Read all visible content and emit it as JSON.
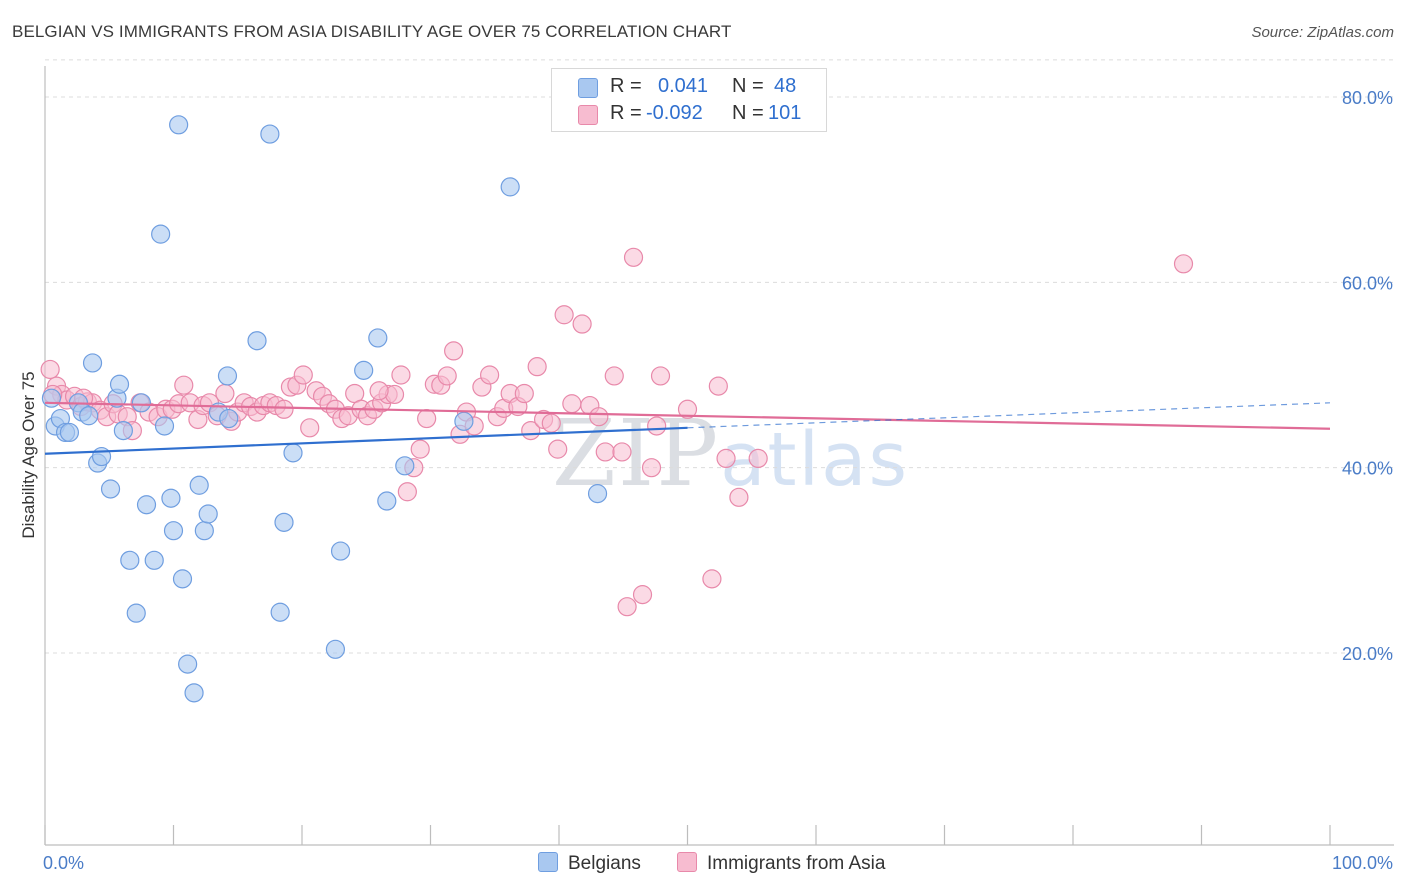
{
  "title": "BELGIAN VS IMMIGRANTS FROM ASIA DISABILITY AGE OVER 75 CORRELATION CHART",
  "source": "Source: ZipAtlas.com",
  "watermark": {
    "zip": "ZIP",
    "atlas": "atlas"
  },
  "legend": {
    "rows": [
      {
        "r_label": "R =",
        "r_value": "0.041",
        "n_label": "N =",
        "n_value": "48",
        "color": "#a9c8f0",
        "border": "#6f9ee0"
      },
      {
        "r_label": "R =",
        "r_value": "-0.092",
        "n_label": "N =",
        "n_value": "101",
        "color": "#f7bcd0",
        "border": "#e889aa"
      }
    ]
  },
  "bottom_legend": [
    "Belgians",
    "Immigrants from Asia"
  ],
  "colors": {
    "belgians_fill": "#a9c8f0",
    "belgians_stroke": "#6f9ee0",
    "belgians_line": "#2f6fcf",
    "asia_fill": "#f7bcd0",
    "asia_stroke": "#e889aa",
    "asia_line": "#e06c97",
    "grid": "#dcdcdc",
    "tick_text": "#4a7cc7"
  },
  "chart_data": {
    "type": "scatter",
    "title": "BELGIAN VS IMMIGRANTS FROM ASIA DISABILITY AGE OVER 75 CORRELATION CHART",
    "xlabel": "",
    "ylabel": "Disability Age Over 75",
    "xlim": [
      0,
      100
    ],
    "ylim": [
      0,
      85
    ],
    "x_tick_labels": [
      {
        "x": 0,
        "label": "0.0%"
      },
      {
        "x": 100,
        "label": "100.0%"
      }
    ],
    "y_tick_labels": [
      {
        "y": 20,
        "label": "20.0%"
      },
      {
        "y": 40,
        "label": "40.0%"
      },
      {
        "y": 60,
        "label": "60.0%"
      },
      {
        "y": 80,
        "label": "80.0%"
      }
    ],
    "series": [
      {
        "name": "Belgians",
        "R": 0.041,
        "N": 48,
        "trend": {
          "x0": 0,
          "y0": 41.5,
          "x1": 50,
          "y1": 44.3,
          "dashed_to_x": 100,
          "dashed_to_y": 47.0
        },
        "points": [
          [
            0.5,
            47.5
          ],
          [
            0.8,
            44.5
          ],
          [
            1.2,
            45.3
          ],
          [
            1.6,
            43.8
          ],
          [
            1.9,
            43.8
          ],
          [
            2.6,
            47.0
          ],
          [
            2.9,
            46.0
          ],
          [
            3.4,
            45.6
          ],
          [
            3.7,
            51.3
          ],
          [
            4.1,
            40.5
          ],
          [
            4.4,
            41.2
          ],
          [
            5.1,
            37.7
          ],
          [
            5.6,
            47.5
          ],
          [
            5.8,
            49.0
          ],
          [
            6.1,
            44.0
          ],
          [
            6.6,
            30.0
          ],
          [
            7.1,
            24.3
          ],
          [
            7.5,
            47.0
          ],
          [
            7.9,
            36.0
          ],
          [
            8.5,
            30.0
          ],
          [
            9.0,
            65.2
          ],
          [
            9.3,
            44.5
          ],
          [
            9.8,
            36.7
          ],
          [
            10.0,
            33.2
          ],
          [
            10.4,
            77.0
          ],
          [
            10.7,
            28.0
          ],
          [
            11.1,
            18.8
          ],
          [
            11.6,
            15.7
          ],
          [
            12.0,
            38.1
          ],
          [
            12.4,
            33.2
          ],
          [
            12.7,
            35.0
          ],
          [
            13.5,
            46.0
          ],
          [
            14.2,
            49.9
          ],
          [
            14.3,
            45.3
          ],
          [
            16.5,
            53.7
          ],
          [
            17.5,
            76.0
          ],
          [
            18.3,
            24.4
          ],
          [
            18.6,
            34.1
          ],
          [
            19.3,
            41.6
          ],
          [
            22.6,
            20.4
          ],
          [
            23.0,
            31.0
          ],
          [
            24.8,
            50.5
          ],
          [
            25.9,
            54.0
          ],
          [
            26.6,
            36.4
          ],
          [
            28.0,
            40.2
          ],
          [
            32.6,
            45.0
          ],
          [
            36.2,
            70.3
          ],
          [
            43.0,
            37.2
          ]
        ]
      },
      {
        "name": "Immigrants from Asia",
        "R": -0.092,
        "N": 101,
        "trend": {
          "x0": 0,
          "y0": 47.0,
          "x1": 100,
          "y1": 44.2
        },
        "points": [
          [
            0.4,
            50.6
          ],
          [
            0.9,
            48.8
          ],
          [
            1.3,
            47.9
          ],
          [
            1.7,
            47.3
          ],
          [
            2.3,
            47.7
          ],
          [
            2.8,
            46.6
          ],
          [
            3.3,
            47.1
          ],
          [
            3.7,
            47.0
          ],
          [
            4.3,
            46.2
          ],
          [
            4.8,
            45.5
          ],
          [
            5.3,
            46.9
          ],
          [
            5.7,
            45.8
          ],
          [
            6.4,
            45.5
          ],
          [
            6.8,
            44.0
          ],
          [
            7.4,
            47.0
          ],
          [
            8.1,
            46.0
          ],
          [
            8.8,
            45.5
          ],
          [
            9.4,
            46.3
          ],
          [
            9.9,
            46.3
          ],
          [
            10.4,
            46.9
          ],
          [
            10.8,
            48.9
          ],
          [
            11.3,
            47.0
          ],
          [
            11.9,
            45.2
          ],
          [
            12.3,
            46.7
          ],
          [
            12.8,
            47.0
          ],
          [
            13.4,
            45.6
          ],
          [
            14.0,
            48.0
          ],
          [
            14.5,
            45.0
          ],
          [
            15.0,
            46.0
          ],
          [
            15.5,
            47.0
          ],
          [
            16.0,
            46.6
          ],
          [
            16.5,
            46.0
          ],
          [
            17.0,
            46.7
          ],
          [
            17.5,
            47.0
          ],
          [
            18.0,
            46.7
          ],
          [
            18.6,
            46.3
          ],
          [
            19.1,
            48.7
          ],
          [
            19.6,
            48.9
          ],
          [
            20.1,
            50.0
          ],
          [
            20.6,
            44.3
          ],
          [
            21.1,
            48.3
          ],
          [
            21.6,
            47.7
          ],
          [
            22.1,
            46.9
          ],
          [
            22.6,
            46.3
          ],
          [
            23.1,
            45.3
          ],
          [
            23.6,
            45.6
          ],
          [
            24.1,
            48.0
          ],
          [
            24.6,
            46.3
          ],
          [
            25.1,
            45.6
          ],
          [
            25.6,
            46.3
          ],
          [
            26.2,
            47.0
          ],
          [
            26.7,
            47.9
          ],
          [
            27.2,
            47.9
          ],
          [
            27.7,
            50.0
          ],
          [
            28.2,
            37.4
          ],
          [
            28.7,
            40.0
          ],
          [
            29.2,
            42.0
          ],
          [
            29.7,
            45.3
          ],
          [
            30.3,
            49.0
          ],
          [
            30.8,
            48.9
          ],
          [
            31.3,
            49.9
          ],
          [
            31.8,
            52.6
          ],
          [
            32.3,
            43.6
          ],
          [
            32.8,
            46.0
          ],
          [
            33.4,
            44.5
          ],
          [
            34.0,
            48.7
          ],
          [
            34.6,
            50.0
          ],
          [
            35.2,
            45.5
          ],
          [
            35.7,
            46.4
          ],
          [
            36.2,
            48.0
          ],
          [
            36.8,
            46.6
          ],
          [
            37.3,
            48.0
          ],
          [
            37.8,
            44.0
          ],
          [
            38.3,
            50.9
          ],
          [
            38.8,
            45.2
          ],
          [
            39.4,
            44.8
          ],
          [
            39.9,
            42.0
          ],
          [
            40.4,
            56.5
          ],
          [
            41.0,
            46.9
          ],
          [
            41.8,
            55.5
          ],
          [
            42.4,
            46.7
          ],
          [
            43.1,
            45.5
          ],
          [
            43.6,
            41.7
          ],
          [
            44.3,
            49.9
          ],
          [
            44.9,
            41.7
          ],
          [
            45.3,
            25.0
          ],
          [
            45.8,
            62.7
          ],
          [
            46.5,
            26.3
          ],
          [
            47.2,
            40.0
          ],
          [
            47.6,
            44.5
          ],
          [
            47.9,
            49.9
          ],
          [
            50.0,
            46.3
          ],
          [
            51.9,
            28.0
          ],
          [
            52.4,
            48.8
          ],
          [
            53.0,
            41.0
          ],
          [
            54.0,
            36.8
          ],
          [
            55.5,
            41.0
          ],
          [
            88.6,
            62.0
          ],
          [
            0.6,
            47.9
          ],
          [
            3.0,
            47.5
          ],
          [
            26.0,
            48.3
          ]
        ]
      }
    ]
  }
}
